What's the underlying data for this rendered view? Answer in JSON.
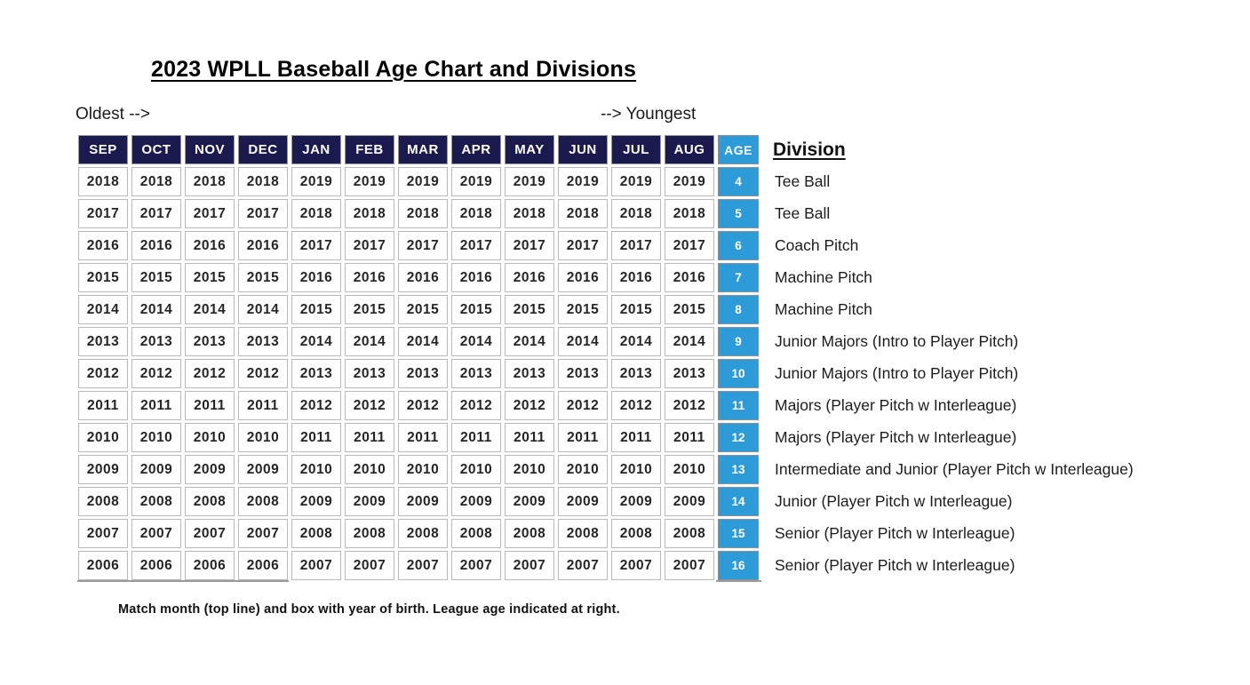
{
  "title": "2023 WPLL Baseball Age Chart and Divisions",
  "labels": {
    "oldest": "Oldest -->",
    "youngest": "--> Youngest",
    "age_header": "AGE",
    "division_header": "Division",
    "footnote": "Match month (top line) and box with year of birth. League age indicated at right."
  },
  "months": [
    "SEP",
    "OCT",
    "NOV",
    "DEC",
    "JAN",
    "FEB",
    "MAR",
    "APR",
    "MAY",
    "JUN",
    "JUL",
    "AUG"
  ],
  "rows": [
    {
      "age": "4",
      "years": [
        "2018",
        "2018",
        "2018",
        "2018",
        "2019",
        "2019",
        "2019",
        "2019",
        "2019",
        "2019",
        "2019",
        "2019"
      ],
      "division": "Tee Ball"
    },
    {
      "age": "5",
      "years": [
        "2017",
        "2017",
        "2017",
        "2017",
        "2018",
        "2018",
        "2018",
        "2018",
        "2018",
        "2018",
        "2018",
        "2018"
      ],
      "division": "Tee Ball"
    },
    {
      "age": "6",
      "years": [
        "2016",
        "2016",
        "2016",
        "2016",
        "2017",
        "2017",
        "2017",
        "2017",
        "2017",
        "2017",
        "2017",
        "2017"
      ],
      "division": "Coach Pitch"
    },
    {
      "age": "7",
      "years": [
        "2015",
        "2015",
        "2015",
        "2015",
        "2016",
        "2016",
        "2016",
        "2016",
        "2016",
        "2016",
        "2016",
        "2016"
      ],
      "division": "Machine Pitch"
    },
    {
      "age": "8",
      "years": [
        "2014",
        "2014",
        "2014",
        "2014",
        "2015",
        "2015",
        "2015",
        "2015",
        "2015",
        "2015",
        "2015",
        "2015"
      ],
      "division": "Machine Pitch"
    },
    {
      "age": "9",
      "years": [
        "2013",
        "2013",
        "2013",
        "2013",
        "2014",
        "2014",
        "2014",
        "2014",
        "2014",
        "2014",
        "2014",
        "2014"
      ],
      "division": "Junior Majors (Intro to Player Pitch)"
    },
    {
      "age": "10",
      "years": [
        "2012",
        "2012",
        "2012",
        "2012",
        "2013",
        "2013",
        "2013",
        "2013",
        "2013",
        "2013",
        "2013",
        "2013"
      ],
      "division": "Junior Majors (Intro to Player Pitch)"
    },
    {
      "age": "11",
      "years": [
        "2011",
        "2011",
        "2011",
        "2011",
        "2012",
        "2012",
        "2012",
        "2012",
        "2012",
        "2012",
        "2012",
        "2012"
      ],
      "division": "Majors (Player Pitch w Interleague)"
    },
    {
      "age": "12",
      "years": [
        "2010",
        "2010",
        "2010",
        "2010",
        "2011",
        "2011",
        "2011",
        "2011",
        "2011",
        "2011",
        "2011",
        "2011"
      ],
      "division": "Majors (Player Pitch w Interleague)"
    },
    {
      "age": "13",
      "years": [
        "2009",
        "2009",
        "2009",
        "2009",
        "2010",
        "2010",
        "2010",
        "2010",
        "2010",
        "2010",
        "2010",
        "2010"
      ],
      "division": "Intermediate and Junior (Player Pitch w Interleague)"
    },
    {
      "age": "14",
      "years": [
        "2008",
        "2008",
        "2008",
        "2008",
        "2009",
        "2009",
        "2009",
        "2009",
        "2009",
        "2009",
        "2009",
        "2009"
      ],
      "division": "Junior (Player Pitch w Interleague)"
    },
    {
      "age": "15",
      "years": [
        "2007",
        "2007",
        "2007",
        "2007",
        "2008",
        "2008",
        "2008",
        "2008",
        "2008",
        "2008",
        "2008",
        "2008"
      ],
      "division": "Senior (Player Pitch w Interleague)"
    },
    {
      "age": "16",
      "years": [
        "2006",
        "2006",
        "2006",
        "2006",
        "2007",
        "2007",
        "2007",
        "2007",
        "2007",
        "2007",
        "2007",
        "2007"
      ],
      "division": "Senior (Player Pitch w Interleague)"
    }
  ],
  "colors": {
    "header_navy": "#1A1A4E",
    "age_blue": "#2D9BD7"
  }
}
